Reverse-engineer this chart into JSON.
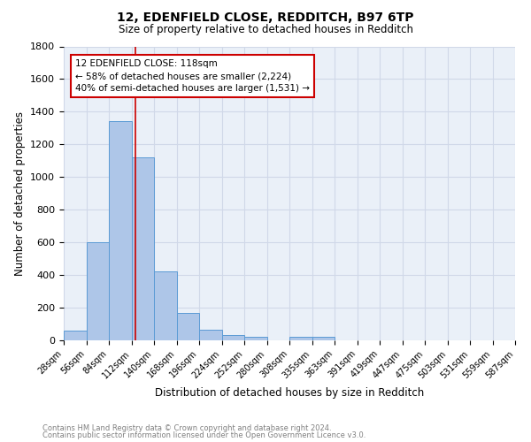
{
  "title": "12, EDENFIELD CLOSE, REDDITCH, B97 6TP",
  "subtitle": "Size of property relative to detached houses in Redditch",
  "xlabel": "Distribution of detached houses by size in Redditch",
  "ylabel": "Number of detached properties",
  "footnote1": "Contains HM Land Registry data © Crown copyright and database right 2024.",
  "footnote2": "Contains public sector information licensed under the Open Government Licence v3.0.",
  "bin_labels": [
    "28sqm",
    "56sqm",
    "84sqm",
    "112sqm",
    "140sqm",
    "168sqm",
    "196sqm",
    "224sqm",
    "252sqm",
    "280sqm",
    "308sqm",
    "335sqm",
    "363sqm",
    "391sqm",
    "419sqm",
    "447sqm",
    "475sqm",
    "503sqm",
    "531sqm",
    "559sqm",
    "587sqm"
  ],
  "bar_values": [
    60,
    600,
    1340,
    1120,
    420,
    170,
    65,
    35,
    20,
    0,
    20,
    20,
    0,
    0,
    0,
    0,
    0,
    0,
    0,
    0
  ],
  "bar_color": "#aec6e8",
  "bar_edge_color": "#5b9bd5",
  "grid_color": "#d0d8e8",
  "background_color": "#eaf0f8",
  "red_line_x": 3.18,
  "annotation_text": "12 EDENFIELD CLOSE: 118sqm\n← 58% of detached houses are smaller (2,224)\n40% of semi-detached houses are larger (1,531) →",
  "annotation_box_color": "#ffffff",
  "annotation_box_edge": "#cc0000",
  "red_line_color": "#cc0000",
  "ylim": [
    0,
    1800
  ],
  "yticks": [
    0,
    200,
    400,
    600,
    800,
    1000,
    1200,
    1400,
    1600,
    1800
  ]
}
